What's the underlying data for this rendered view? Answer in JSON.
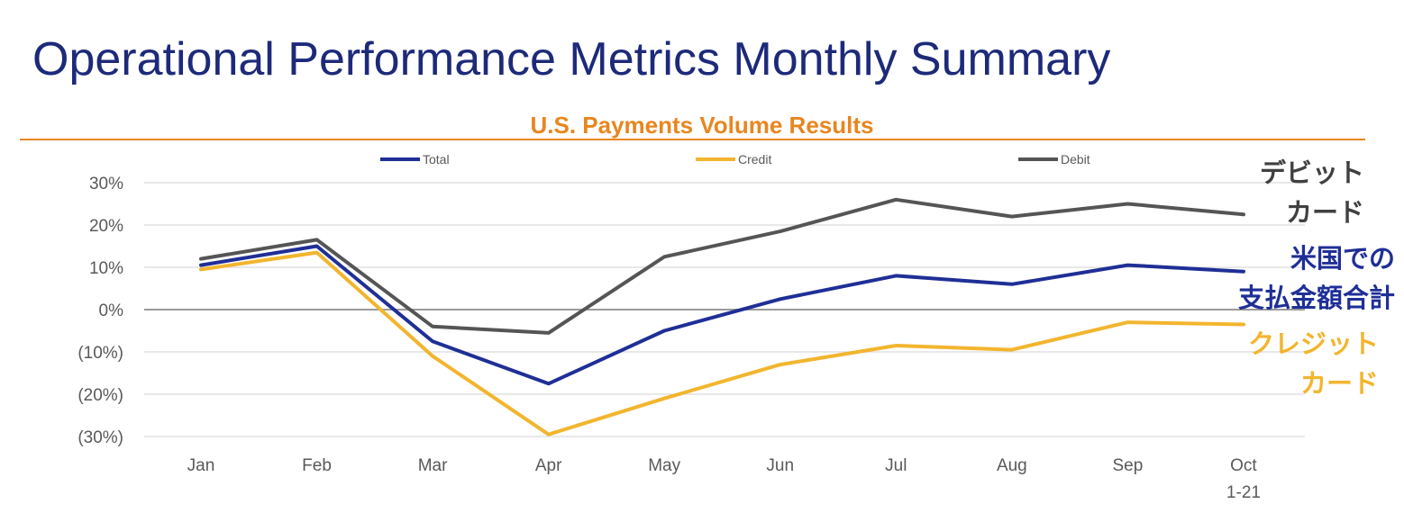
{
  "page": {
    "title": "Operational Performance Metrics Monthly Summary"
  },
  "colors": {
    "total": "#1f2f96",
    "credit": "#f2b52e",
    "debit": "#555555",
    "accent": "#e8861f",
    "title": "#1d2a7a"
  },
  "chart_data": {
    "type": "line",
    "title": "U.S. Payments Volume Results",
    "xlabel": "",
    "ylabel": "",
    "categories": [
      "Jan",
      "Feb",
      "Mar",
      "Apr",
      "May",
      "Jun",
      "Jul",
      "Aug",
      "Sep",
      "Oct"
    ],
    "x_tick_labels": [
      "Jan",
      "Feb",
      "Mar",
      "Apr",
      "May",
      "Jun",
      "Jul",
      "Aug",
      "Sep",
      "Oct"
    ],
    "x_tick_sublabels": [
      "",
      "",
      "",
      "",
      "",
      "",
      "",
      "",
      "",
      "1-21"
    ],
    "y_tick_values": [
      30,
      20,
      10,
      0,
      -10,
      -20,
      -30
    ],
    "y_tick_labels": [
      "30%",
      "20%",
      "10%",
      "0%",
      "(10%)",
      "(20%)",
      "(30%)"
    ],
    "ylim": [
      -30,
      30
    ],
    "grid": true,
    "legend_position": "top",
    "series": [
      {
        "name": "Total",
        "key": "total",
        "values": [
          10.5,
          15,
          -7.5,
          -17.5,
          -5,
          2.5,
          8,
          6,
          10.5,
          9
        ],
        "end_label": [
          "米国での",
          "支払金額合計"
        ]
      },
      {
        "name": "Credit",
        "key": "credit",
        "values": [
          9.5,
          13.5,
          -11,
          -29.5,
          -21,
          -13,
          -8.5,
          -9.5,
          -3,
          -3.5
        ],
        "end_label": [
          "クレジット",
          "カード"
        ]
      },
      {
        "name": "Debit",
        "key": "debit",
        "values": [
          12,
          16.5,
          -4,
          -5.5,
          12.5,
          18.5,
          26,
          22,
          25,
          22.5
        ],
        "end_label": [
          "デビット",
          "カード"
        ]
      }
    ]
  }
}
